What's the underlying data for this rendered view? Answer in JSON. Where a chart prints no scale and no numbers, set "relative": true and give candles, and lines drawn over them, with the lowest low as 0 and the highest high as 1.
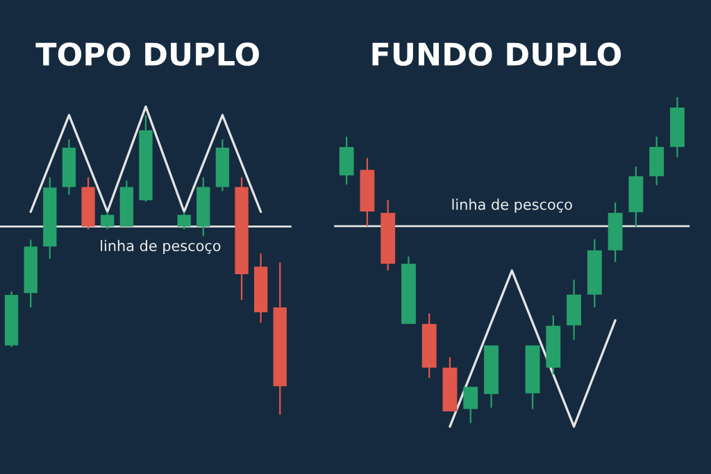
{
  "chart_data": [
    {
      "type": "candlestick",
      "title": "TOPO DUPLO",
      "relative": true,
      "categories": [
        null,
        null,
        null,
        null,
        null,
        null,
        null,
        null,
        null,
        null,
        null,
        null,
        null,
        null,
        null
      ],
      "ohlc": [
        [
          0.231,
          0.411,
          0.226,
          0.4
        ],
        [
          0.406,
          0.584,
          0.358,
          0.561
        ],
        [
          0.561,
          0.792,
          0.52,
          0.758
        ],
        [
          0.76,
          0.919,
          0.734,
          0.891
        ],
        [
          0.76,
          0.792,
          0.619,
          0.628
        ],
        [
          0.628,
          0.677,
          0.619,
          0.667
        ],
        [
          0.628,
          0.781,
          0.628,
          0.76
        ],
        [
          0.716,
          1.0,
          0.711,
          0.949
        ],
        null,
        [
          0.628,
          0.677,
          0.619,
          0.667
        ],
        [
          0.628,
          0.792,
          0.596,
          0.76
        ],
        [
          0.76,
          0.919,
          0.746,
          0.891
        ],
        [
          0.76,
          0.792,
          0.383,
          0.469
        ],
        [
          0.494,
          0.538,
          0.307,
          0.342
        ],
        [
          0.358,
          0.508,
          0.0,
          0.095
        ]
      ],
      "colors": [
        "#27a16b",
        "#27a16b",
        "#27a16b",
        "#27a16b",
        "#e0574b",
        "#27a16b",
        "#27a16b",
        "#27a16b",
        null,
        "#27a16b",
        "#27a16b",
        "#27a16b",
        "#e0574b",
        "#e0574b",
        "#e0574b"
      ],
      "series": [
        {
          "type": "line",
          "color": "#e4e4e4",
          "values": [
            null,
            0.677,
            null,
            1.0,
            null,
            0.677,
            null,
            1.028,
            null,
            0.677,
            null,
            1.0,
            null,
            0.677,
            null
          ]
        }
      ],
      "ref_lines": [
        {
          "axis": "y",
          "value": 0.628,
          "label": "linha de pescoço",
          "color": "#e4e4e4"
        }
      ]
    },
    {
      "type": "candlestick",
      "title": "FUNDO DUPLO",
      "relative": true,
      "categories": [
        null,
        null,
        null,
        null,
        null,
        null,
        null,
        null,
        null,
        null,
        null,
        null,
        null,
        null,
        null,
        null,
        null
      ],
      "ohlc": [
        [
          0.76,
          0.879,
          0.732,
          0.847
        ],
        [
          0.777,
          0.813,
          0.604,
          0.649
        ],
        [
          0.645,
          0.685,
          0.468,
          0.489
        ],
        [
          0.304,
          0.511,
          0.304,
          0.489
        ],
        [
          0.304,
          0.336,
          0.138,
          0.17
        ],
        [
          0.17,
          0.202,
          0.036,
          0.036
        ],
        [
          0.043,
          0.111,
          0.0,
          0.111
        ],
        [
          0.089,
          0.238,
          0.047,
          0.238
        ],
        null,
        [
          0.091,
          0.238,
          0.043,
          0.238
        ],
        [
          0.17,
          0.33,
          0.149,
          0.298
        ],
        [
          0.3,
          0.44,
          0.255,
          0.394
        ],
        [
          0.394,
          0.564,
          0.355,
          0.53
        ],
        [
          0.53,
          0.677,
          0.494,
          0.645
        ],
        [
          0.647,
          0.787,
          0.6,
          0.757
        ],
        [
          0.757,
          0.879,
          0.73,
          0.847
        ],
        [
          0.847,
          1.0,
          0.815,
          0.968
        ]
      ],
      "colors": [
        "#27a16b",
        "#e0574b",
        "#e0574b",
        "#27a16b",
        "#e0574b",
        "#e0574b",
        "#27a16b",
        "#27a16b",
        null,
        "#27a16b",
        "#27a16b",
        "#27a16b",
        "#27a16b",
        "#27a16b",
        "#27a16b",
        "#27a16b",
        "#27a16b"
      ],
      "series": [
        {
          "type": "line",
          "color": "#e4e4e4",
          "values": [
            null,
            null,
            null,
            null,
            null,
            -0.011,
            null,
            null,
            0.468,
            null,
            null,
            -0.011,
            null,
            0.315,
            null,
            null,
            null
          ]
        }
      ],
      "ref_lines": [
        {
          "axis": "y",
          "value": 0.604,
          "label": "linha de pescoço",
          "color": "#e4e4e4"
        }
      ]
    }
  ]
}
